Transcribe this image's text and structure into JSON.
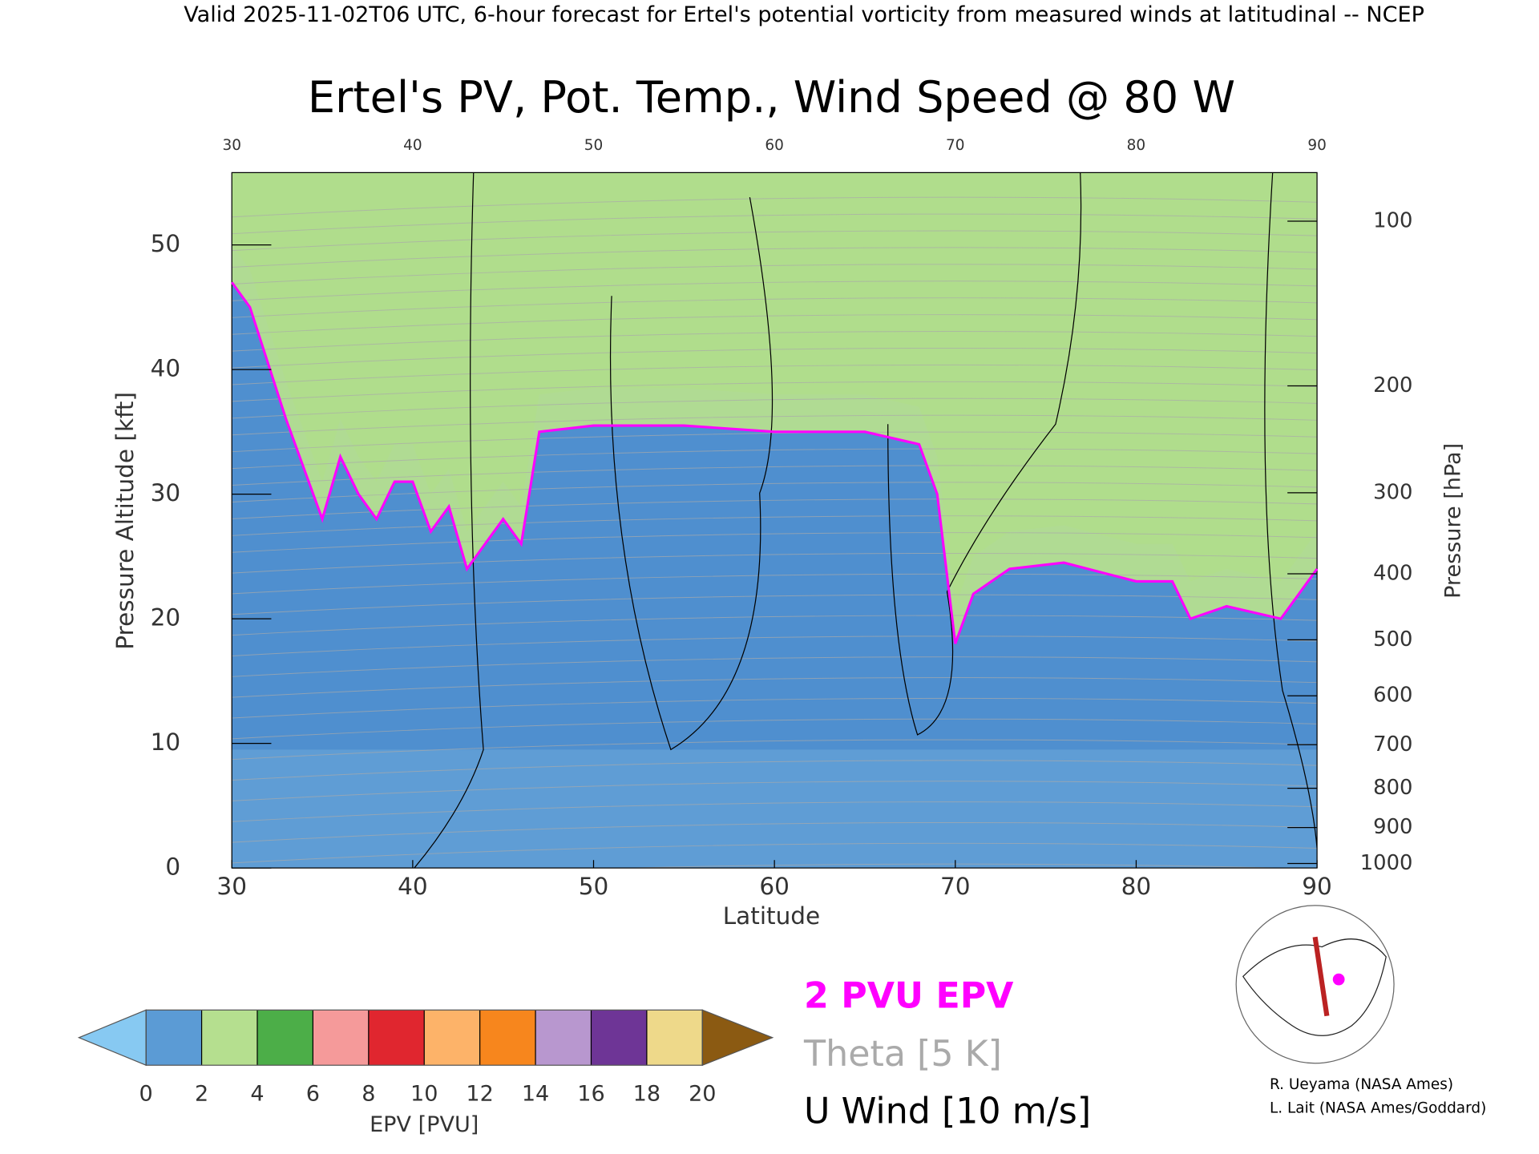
{
  "chart_data": {
    "type": "line",
    "suptitle": "Valid 2025-11-02T06 UTC, 6-hour forecast for Ertel's potential vorticity from measured winds at latitudinal -- NCEP",
    "title": "Ertel's PV, Pot. Temp., Wind Speed @ 80 W",
    "xlabel": "Latitude",
    "ylabel": "Pressure Altitude [kft]",
    "y2label": "Pressure [hPa]",
    "xlim": [
      30,
      90
    ],
    "xticks": [
      30,
      40,
      50,
      60,
      70,
      80,
      90
    ],
    "ylim": [
      0,
      55.8
    ],
    "yticks": [
      0,
      10,
      20,
      30,
      40,
      50
    ],
    "y2lim": [
      1013,
      80
    ],
    "y2ticks": [
      100,
      200,
      300,
      400,
      500,
      600,
      700,
      800,
      900,
      1000
    ],
    "y2scale": "pressure-altitude",
    "series": [
      {
        "name": "2 PVU EPV",
        "color": "#ff00ff",
        "x": [
          30,
          31,
          33,
          35,
          36,
          37,
          38,
          39,
          40,
          41,
          42,
          43,
          44,
          45,
          46,
          47,
          50,
          55,
          60,
          62,
          65,
          68,
          69,
          70,
          71,
          73,
          76,
          80,
          82,
          83,
          85,
          88,
          90
        ],
        "values": [
          47,
          45,
          36,
          28,
          33,
          30,
          28,
          31,
          31,
          27,
          29,
          24,
          26,
          28,
          26,
          35,
          35.5,
          35.5,
          35,
          35,
          35,
          34,
          30,
          18,
          22,
          24,
          24.5,
          23,
          23,
          20,
          21,
          20,
          24
        ]
      }
    ],
    "contour_legend": [
      {
        "label": "Theta [5 K]",
        "color": "#aaaaaa"
      },
      {
        "label": "U Wind [10 m/s]",
        "color": "#000000"
      }
    ],
    "colorbar": {
      "label": "EPV [PVU]",
      "lim": [
        0,
        20
      ],
      "ticks": [
        0,
        2,
        4,
        6,
        8,
        10,
        12,
        14,
        16,
        18,
        20
      ],
      "colors": [
        "#5b9bd5",
        "#b5df8f",
        "#4cae48",
        "#f59a9a",
        "#e0262f",
        "#fdb369",
        "#f7861d",
        "#b897cf",
        "#6e3596",
        "#eed98a"
      ],
      "under": "#87c9f2",
      "over": "#8b5a12"
    },
    "credits": [
      "R. Ueyama (NASA Ames)",
      "L. Lait (NASA Ames/Goddard)"
    ]
  }
}
